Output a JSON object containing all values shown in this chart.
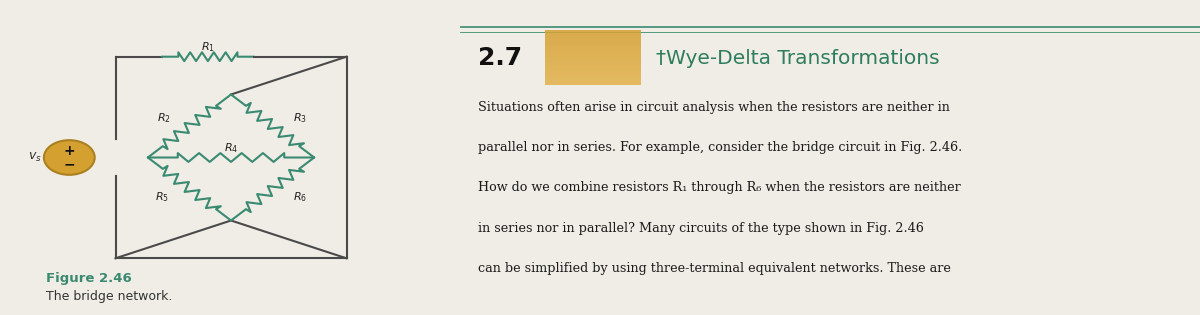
{
  "bg_color": "#f0ede6",
  "circuit_bg": "#ffffff",
  "teal_color": "#3a8a72",
  "section_num": "2.7",
  "section_title": "†Wye-Delta Transformations",
  "orange_gradient_start": "#e8c060",
  "orange_gradient_end": "#c8922a",
  "section_num_color": "#111111",
  "title_color": "#2e7d5e",
  "body_text_line1": "Situations often arise in circuit analysis when the resistors are neither in",
  "body_text_line2": "parallel nor in series. For example, consider the bridge circuit in Fig. 2.46.",
  "body_text_line3": "How do we combine resistors R₁ through R₆ when the resistors are neither",
  "body_text_line4": "in series nor in parallel? Many circuits of the type shown in Fig. 2.46",
  "body_text_line5": "can be simplified by using three-terminal equivalent networks. These are",
  "figure_label": "Figure 2.46",
  "figure_caption": "The bridge network.",
  "resistor_color": "#3a8a72",
  "wire_color": "#4a4a4a",
  "source_fill": "#d4a030",
  "source_edge": "#aa8020"
}
